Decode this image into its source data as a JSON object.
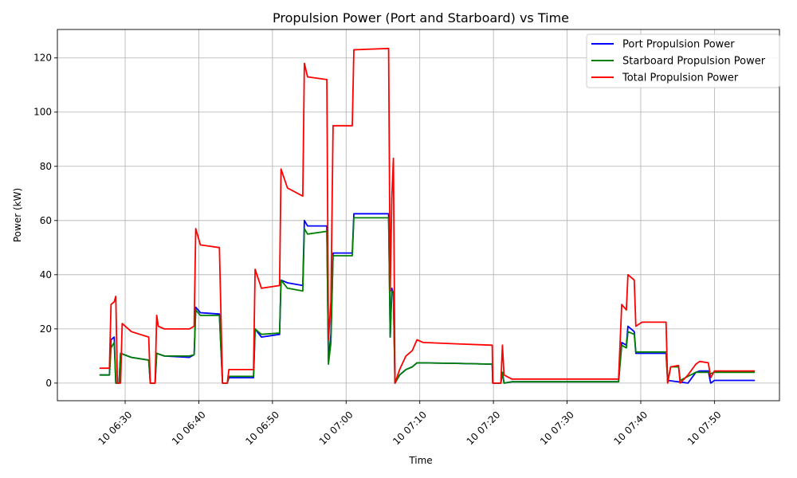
{
  "chart_data": {
    "type": "line",
    "title": "Propulsion Power (Port and Starboard) vs Time",
    "xlabel": "Time",
    "ylabel": "Power (kW)",
    "x_unit": "time of day (day 10)",
    "xlim": [
      "06:20:48",
      "07:58:50"
    ],
    "ylim": [
      -6.5,
      130.5
    ],
    "x_ticks": [
      {
        "value": "06:30",
        "label": "10 06:30"
      },
      {
        "value": "06:40",
        "label": "10 06:40"
      },
      {
        "value": "06:50",
        "label": "10 06:50"
      },
      {
        "value": "07:00",
        "label": "10 07:00"
      },
      {
        "value": "07:10",
        "label": "10 07:10"
      },
      {
        "value": "07:20",
        "label": "10 07:20"
      },
      {
        "value": "07:30",
        "label": "10 07:30"
      },
      {
        "value": "07:40",
        "label": "10 07:40"
      },
      {
        "value": "07:50",
        "label": "10 07:50"
      }
    ],
    "y_ticks": [
      0,
      20,
      40,
      60,
      80,
      100,
      120
    ],
    "grid": true,
    "legend_position": "top-right",
    "series": [
      {
        "name": "Port Propulsion Power",
        "color": "#0000ff",
        "points": [
          [
            "06:26:36",
            3
          ],
          [
            "06:27:52",
            3
          ],
          [
            "06:28:05",
            16
          ],
          [
            "06:28:31",
            17
          ],
          [
            "06:28:44",
            0
          ],
          [
            "06:29:10",
            0
          ],
          [
            "06:29:23",
            11
          ],
          [
            "06:30:51",
            9.5
          ],
          [
            "06:33:12",
            8.5
          ],
          [
            "06:33:25",
            0
          ],
          [
            "06:34:04",
            0
          ],
          [
            "06:34:17",
            11
          ],
          [
            "06:35:20",
            10
          ],
          [
            "06:38:43",
            9.5
          ],
          [
            "06:39:22",
            10.5
          ],
          [
            "06:39:35",
            28
          ],
          [
            "06:40:13",
            26
          ],
          [
            "06:42:48",
            25.5
          ],
          [
            "06:43:13",
            0
          ],
          [
            "06:43:52",
            0
          ],
          [
            "06:44:05",
            2
          ],
          [
            "06:47:26",
            2
          ],
          [
            "06:47:39",
            20
          ],
          [
            "06:48:30",
            17
          ],
          [
            "06:50:58",
            18
          ],
          [
            "06:51:10",
            38
          ],
          [
            "06:52:02",
            37
          ],
          [
            "06:54:07",
            36
          ],
          [
            "06:54:20",
            60
          ],
          [
            "06:54:46",
            58
          ],
          [
            "06:57:23",
            58
          ],
          [
            "06:57:36",
            8
          ],
          [
            "06:57:56",
            18
          ],
          [
            "06:58:14",
            48
          ],
          [
            "07:00:50",
            48
          ],
          [
            "07:01:03",
            62.5
          ],
          [
            "07:05:46",
            62.5
          ],
          [
            "07:05:59",
            17
          ],
          [
            "07:06:12",
            35
          ],
          [
            "07:06:25",
            33
          ],
          [
            "07:06:38",
            0
          ],
          [
            "07:07:16",
            3
          ],
          [
            "07:08:07",
            5
          ],
          [
            "07:08:59",
            6
          ],
          [
            "07:09:37",
            7.5
          ],
          [
            "07:15:00",
            7.3
          ],
          [
            "07:19:50",
            7
          ],
          [
            "07:19:55",
            0
          ],
          [
            "07:21:00",
            0
          ],
          [
            "07:21:13",
            4
          ],
          [
            "07:21:26",
            0
          ],
          [
            "07:22:30",
            0.5
          ],
          [
            "07:36:59",
            0.5
          ],
          [
            "07:37:25",
            15
          ],
          [
            "07:38:03",
            14
          ],
          [
            "07:38:16",
            21
          ],
          [
            "07:39:07",
            19
          ],
          [
            "07:39:20",
            11
          ],
          [
            "07:43:26",
            11
          ],
          [
            "07:43:39",
            1
          ],
          [
            "07:46:25",
            0
          ],
          [
            "07:47:29",
            4
          ],
          [
            "07:48:00",
            4.5
          ],
          [
            "07:49:10",
            4.5
          ],
          [
            "07:49:30",
            0
          ],
          [
            "07:50:00",
            1
          ],
          [
            "07:55:25",
            1
          ]
        ]
      },
      {
        "name": "Starboard Propulsion Power",
        "color": "#008000",
        "points": [
          [
            "06:26:36",
            3
          ],
          [
            "06:27:52",
            3
          ],
          [
            "06:28:05",
            13
          ],
          [
            "06:28:31",
            15
          ],
          [
            "06:28:44",
            0
          ],
          [
            "06:29:10",
            0
          ],
          [
            "06:29:23",
            11
          ],
          [
            "06:30:51",
            9.5
          ],
          [
            "06:33:12",
            8.5
          ],
          [
            "06:33:25",
            0
          ],
          [
            "06:34:04",
            0
          ],
          [
            "06:34:17",
            11
          ],
          [
            "06:35:20",
            10
          ],
          [
            "06:38:43",
            10
          ],
          [
            "06:39:22",
            10.5
          ],
          [
            "06:39:35",
            27
          ],
          [
            "06:40:13",
            25
          ],
          [
            "06:42:48",
            25
          ],
          [
            "06:43:13",
            0
          ],
          [
            "06:43:52",
            0
          ],
          [
            "06:44:05",
            2.5
          ],
          [
            "06:47:26",
            2.5
          ],
          [
            "06:47:39",
            20
          ],
          [
            "06:48:30",
            18
          ],
          [
            "06:50:58",
            18.5
          ],
          [
            "06:51:10",
            38
          ],
          [
            "06:52:02",
            35
          ],
          [
            "06:54:07",
            34
          ],
          [
            "06:54:20",
            57
          ],
          [
            "06:54:46",
            55
          ],
          [
            "06:57:23",
            56
          ],
          [
            "06:57:36",
            7
          ],
          [
            "06:57:56",
            15
          ],
          [
            "06:58:14",
            47
          ],
          [
            "07:00:50",
            47
          ],
          [
            "07:01:03",
            61
          ],
          [
            "07:05:46",
            61
          ],
          [
            "07:05:59",
            17
          ],
          [
            "07:06:12",
            34
          ],
          [
            "07:06:25",
            33
          ],
          [
            "07:06:38",
            0
          ],
          [
            "07:07:16",
            3
          ],
          [
            "07:08:07",
            5
          ],
          [
            "07:08:59",
            6
          ],
          [
            "07:09:37",
            7.5
          ],
          [
            "07:15:00",
            7.3
          ],
          [
            "07:19:50",
            7
          ],
          [
            "07:19:55",
            0
          ],
          [
            "07:21:00",
            0
          ],
          [
            "07:21:13",
            4
          ],
          [
            "07:21:26",
            0
          ],
          [
            "07:22:30",
            0.5
          ],
          [
            "07:36:59",
            0.5
          ],
          [
            "07:37:25",
            14
          ],
          [
            "07:38:03",
            13
          ],
          [
            "07:38:16",
            19
          ],
          [
            "07:39:07",
            18
          ],
          [
            "07:39:20",
            11.5
          ],
          [
            "07:43:26",
            11.5
          ],
          [
            "07:43:39",
            0.5
          ],
          [
            "07:44:04",
            6
          ],
          [
            "07:45:08",
            6
          ],
          [
            "07:45:21",
            1
          ],
          [
            "07:47:29",
            4
          ],
          [
            "07:48:00",
            4
          ],
          [
            "07:49:10",
            4
          ],
          [
            "07:49:30",
            3.5
          ],
          [
            "07:50:00",
            4
          ],
          [
            "07:55:25",
            4
          ]
        ]
      },
      {
        "name": "Total Propulsion Power",
        "color": "#ff0000",
        "points": [
          [
            "06:26:36",
            5.5
          ],
          [
            "06:27:52",
            5.5
          ],
          [
            "06:28:05",
            29
          ],
          [
            "06:28:31",
            30
          ],
          [
            "06:28:44",
            32
          ],
          [
            "06:28:57",
            0
          ],
          [
            "06:29:23",
            0
          ],
          [
            "06:29:36",
            22
          ],
          [
            "06:30:51",
            19
          ],
          [
            "06:33:12",
            17
          ],
          [
            "06:33:25",
            0
          ],
          [
            "06:34:04",
            0
          ],
          [
            "06:34:17",
            25
          ],
          [
            "06:34:30",
            21
          ],
          [
            "06:35:20",
            20
          ],
          [
            "06:38:43",
            20
          ],
          [
            "06:39:22",
            21
          ],
          [
            "06:39:35",
            57
          ],
          [
            "06:40:13",
            51
          ],
          [
            "06:42:48",
            50
          ],
          [
            "06:43:13",
            0
          ],
          [
            "06:43:52",
            0
          ],
          [
            "06:44:05",
            5
          ],
          [
            "06:47:26",
            5
          ],
          [
            "06:47:39",
            42
          ],
          [
            "06:48:30",
            35
          ],
          [
            "06:50:58",
            36
          ],
          [
            "06:51:10",
            79
          ],
          [
            "06:52:02",
            72
          ],
          [
            "06:54:07",
            69
          ],
          [
            "06:54:20",
            118
          ],
          [
            "06:54:46",
            113
          ],
          [
            "06:57:23",
            112
          ],
          [
            "06:57:36",
            16
          ],
          [
            "06:57:56",
            30
          ],
          [
            "06:58:14",
            95
          ],
          [
            "07:00:50",
            95
          ],
          [
            "07:01:03",
            123
          ],
          [
            "07:05:46",
            123.5
          ],
          [
            "07:05:59",
            34
          ],
          [
            "07:06:12",
            68
          ],
          [
            "07:06:25",
            83
          ],
          [
            "07:06:38",
            0
          ],
          [
            "07:07:16",
            5
          ],
          [
            "07:08:07",
            10
          ],
          [
            "07:08:59",
            12
          ],
          [
            "07:09:37",
            16
          ],
          [
            "07:10:28",
            15
          ],
          [
            "07:15:00",
            14.5
          ],
          [
            "07:19:50",
            14
          ],
          [
            "07:19:55",
            0
          ],
          [
            "07:21:00",
            0
          ],
          [
            "07:21:13",
            14
          ],
          [
            "07:21:26",
            3
          ],
          [
            "07:22:30",
            1.5
          ],
          [
            "07:36:59",
            1.5
          ],
          [
            "07:37:25",
            29
          ],
          [
            "07:38:03",
            27
          ],
          [
            "07:38:16",
            40
          ],
          [
            "07:39:07",
            38
          ],
          [
            "07:39:20",
            21
          ],
          [
            "07:40:11",
            22.5
          ],
          [
            "07:43:26",
            22.5
          ],
          [
            "07:43:39",
            0
          ],
          [
            "07:44:04",
            6
          ],
          [
            "07:45:08",
            6.5
          ],
          [
            "07:45:21",
            0
          ],
          [
            "07:46:25",
            3
          ],
          [
            "07:47:29",
            7
          ],
          [
            "07:48:00",
            8
          ],
          [
            "07:49:10",
            7.5
          ],
          [
            "07:49:30",
            2
          ],
          [
            "07:50:00",
            4.5
          ],
          [
            "07:55:25",
            4.5
          ]
        ]
      }
    ]
  }
}
